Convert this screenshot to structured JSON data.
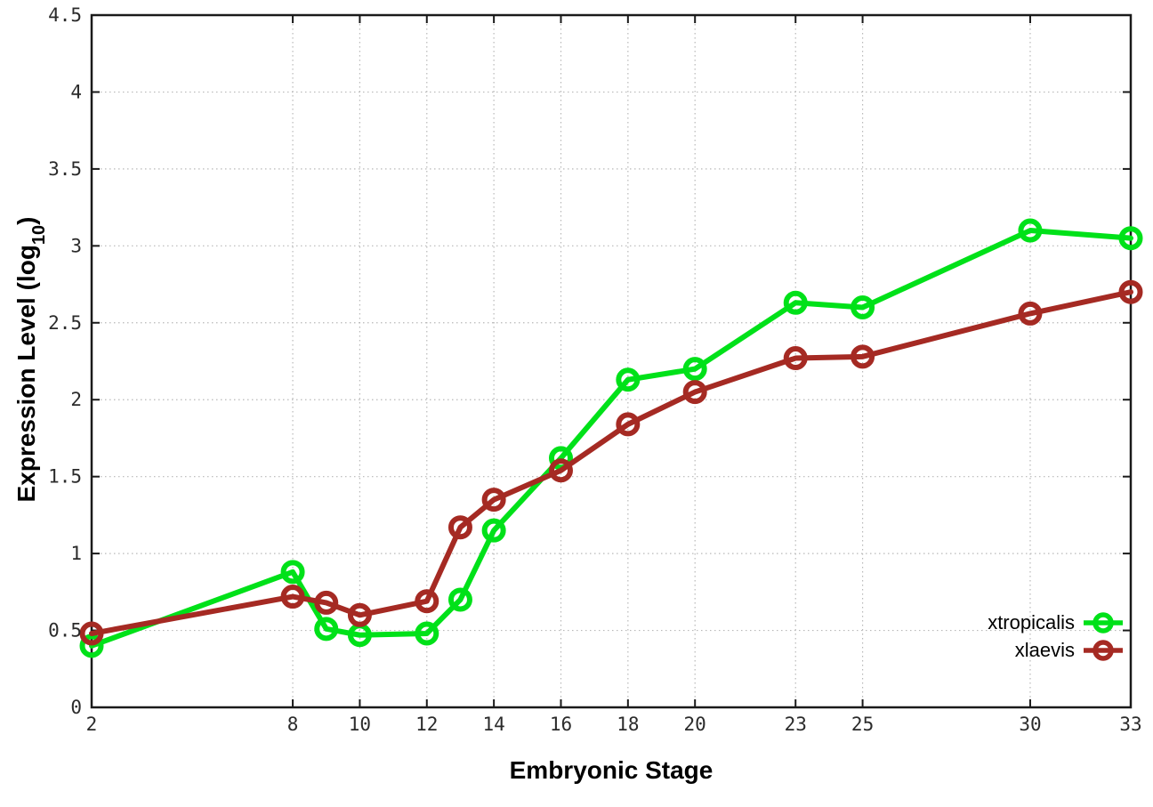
{
  "chart_data": {
    "type": "line",
    "title": "",
    "xlabel": "Embryonic Stage",
    "ylabel": "Expression Level (log10)",
    "ylabel_prefix": "Expression Level (log",
    "ylabel_sub": "10",
    "ylabel_suffix": ")",
    "xlim": [
      2,
      33
    ],
    "ylim": [
      0,
      4.5
    ],
    "x_ticks": [
      2,
      8,
      10,
      12,
      14,
      16,
      18,
      20,
      23,
      25,
      30,
      33
    ],
    "y_ticks": [
      0,
      0.5,
      1,
      1.5,
      2,
      2.5,
      3,
      3.5,
      4,
      4.5
    ],
    "grid": true,
    "legend_position": "bottom-right",
    "x": [
      2,
      8,
      9,
      10,
      12,
      13,
      14,
      16,
      18,
      20,
      23,
      25,
      30,
      33
    ],
    "series": [
      {
        "name": "xtropicalis",
        "color": "#00e119",
        "marker": "open-circle",
        "values": [
          0.4,
          0.88,
          0.51,
          0.47,
          0.48,
          0.7,
          1.15,
          1.62,
          2.13,
          2.2,
          2.63,
          2.6,
          3.1,
          3.05
        ]
      },
      {
        "name": "xlaevis",
        "color": "#a52a23",
        "marker": "open-circle",
        "values": [
          0.48,
          0.72,
          0.68,
          0.6,
          0.69,
          1.17,
          1.35,
          1.54,
          1.84,
          2.05,
          2.27,
          2.28,
          2.56,
          2.7
        ]
      }
    ],
    "colors": {
      "axis": "#1a1a1a",
      "grid": "#b8b8b8",
      "tick_label": "#2b2b2b",
      "background": "#ffffff"
    }
  }
}
